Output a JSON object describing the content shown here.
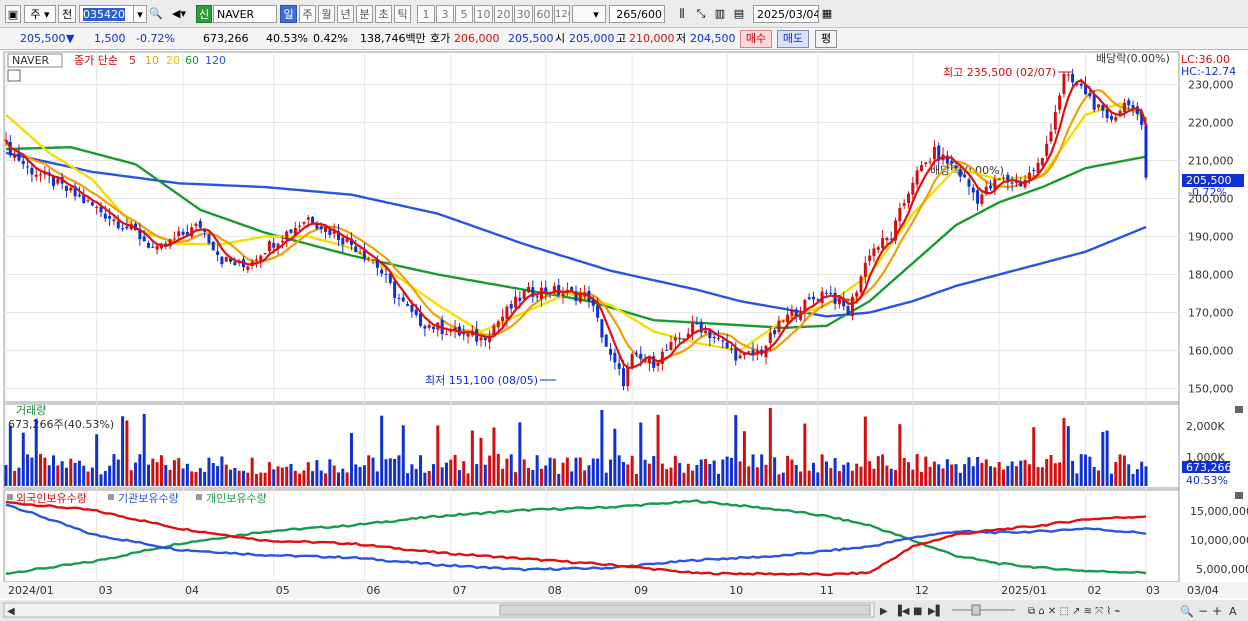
{
  "toolbar": {
    "type_select": "주",
    "prev_label": "전",
    "code": "035420",
    "stock_name": "NAVER",
    "market_badge": "신",
    "periods": [
      "일",
      "주",
      "월",
      "년",
      "분",
      "초",
      "틱"
    ],
    "active_period": "일",
    "numbers": [
      "1",
      "3",
      "5",
      "10",
      "20",
      "30",
      "60",
      "120"
    ],
    "count_value": "265",
    "count_total": "/600",
    "date": "2025/03/04"
  },
  "quote": {
    "price": "205,500",
    "change_arrow": "▼",
    "change": "1,500",
    "change_rate": "-0.72%",
    "volume": "673,266",
    "volume_rate": "40.53%",
    "turnover_rate": "0.42%",
    "amount": "138,746백만",
    "bid_label": "호가",
    "bid1": "206,000",
    "bid2": "205,500",
    "open_label": "시",
    "open": "205,000",
    "high_label": "고",
    "high": "210,000",
    "low_label": "저",
    "low": "204,500",
    "buy_button": "매수",
    "sell_button": "매도",
    "eval_button": "평"
  },
  "price_panel": {
    "name_box": "NAVER",
    "legend_prefix": "종가 단순",
    "ma": [
      {
        "period": "5",
        "color": "#dd1111"
      },
      {
        "period": "10",
        "color": "#f0a000"
      },
      {
        "period": "20",
        "color": "#f0e000"
      },
      {
        "period": "60",
        "color": "#1a9a30"
      },
      {
        "period": "120",
        "color": "#2a55e0"
      }
    ],
    "dividend_label": "배당락(0.00%)",
    "dividend_label_mid": "배당락(0.00%)",
    "lc_label": "LC:36.00",
    "hc_label": "HC:-12.74",
    "max_label": "최고 235,500 (02/07)",
    "min_label": "최저 151,100 (08/05)",
    "current_price_tag": "205,500",
    "current_change_tag": "-0.72%",
    "y_ticks": [
      "230,000",
      "220,000",
      "210,000",
      "200,000",
      "190,000",
      "180,000",
      "170,000",
      "160,000",
      "150,000"
    ]
  },
  "volume_panel": {
    "title": "거래량",
    "value_label": "673,266주(40.53%)",
    "y_ticks": [
      "2,000K",
      "1,000K"
    ],
    "current_tag": "673,266",
    "current_pct": "40.53%"
  },
  "holding_panel": {
    "legend": [
      {
        "name": "외국인보유수량",
        "color": "#dd1111"
      },
      {
        "name": "기관보유수량",
        "color": "#2a55e0"
      },
      {
        "name": "개인보유수량",
        "color": "#1a9a50"
      }
    ],
    "y_ticks": [
      "15,000,000",
      "10,000,000",
      "5,000,000"
    ]
  },
  "x_axis": {
    "ticks": [
      "2024/01",
      "03",
      "04",
      "05",
      "06",
      "07",
      "08",
      "09",
      "10",
      "11",
      "12",
      "2025/01",
      "02",
      "03"
    ],
    "right_label": "03/04"
  },
  "chart_data": {
    "type": "line",
    "title": "NAVER 035420",
    "y_range": [
      147000,
      238000
    ],
    "max": {
      "value": 235500,
      "date": "02/07"
    },
    "min": {
      "value": 151100,
      "date": "08/05"
    },
    "close": {
      "x": [
        0,
        5,
        10,
        20,
        30,
        35,
        40,
        45,
        50,
        55,
        60,
        70,
        80,
        85,
        90,
        95,
        100,
        110,
        120,
        125,
        130,
        135,
        140,
        143,
        145,
        150,
        160,
        170,
        175,
        180,
        185,
        190,
        195,
        200,
        205,
        210,
        215,
        220,
        225,
        230,
        235,
        240,
        245,
        250,
        255,
        260,
        263,
        264
      ],
      "values": [
        214000,
        208000,
        205000,
        198000,
        191000,
        186000,
        190000,
        193000,
        184000,
        182000,
        187000,
        195000,
        188000,
        184000,
        175000,
        168000,
        166000,
        163000,
        175000,
        176000,
        175000,
        174000,
        158000,
        152000,
        158000,
        157000,
        167000,
        158000,
        160000,
        168000,
        172000,
        176000,
        170000,
        186000,
        190000,
        205000,
        212000,
        208000,
        200000,
        205000,
        204000,
        210000,
        232000,
        228000,
        220000,
        226000,
        218000,
        205500
      ]
    },
    "ma120": {
      "x": [
        0,
        20,
        40,
        60,
        80,
        100,
        120,
        140,
        160,
        170,
        180,
        190,
        200,
        210,
        220,
        230,
        240,
        250,
        264
      ],
      "values": [
        212000,
        207000,
        204000,
        203000,
        201000,
        196000,
        188000,
        181000,
        176000,
        173000,
        171000,
        169000,
        170000,
        173000,
        177000,
        180000,
        183000,
        186000,
        192500
      ]
    },
    "ma60": {
      "x": [
        0,
        15,
        30,
        45,
        60,
        80,
        100,
        120,
        135,
        150,
        165,
        180,
        190,
        200,
        210,
        220,
        230,
        240,
        250,
        264
      ],
      "values": [
        213000,
        213500,
        209000,
        197000,
        191000,
        185000,
        180000,
        176000,
        173000,
        168000,
        167000,
        166000,
        166500,
        173000,
        183000,
        193000,
        199000,
        203000,
        208000,
        211000
      ]
    },
    "ma20": {
      "x": [
        0,
        10,
        20,
        30,
        40,
        50,
        60,
        70,
        80,
        90,
        100,
        110,
        120,
        130,
        140,
        150,
        160,
        170,
        180,
        190,
        200,
        210,
        220,
        230,
        240,
        250,
        258,
        264
      ],
      "values": [
        222000,
        212000,
        205000,
        192000,
        188000,
        188000,
        190000,
        190000,
        187000,
        180000,
        172000,
        165000,
        170000,
        175000,
        172000,
        165000,
        162000,
        160000,
        168000,
        172000,
        180000,
        196000,
        208000,
        205000,
        206000,
        222000,
        225000,
        221000
      ]
    },
    "volume_bars_scale": "K",
    "holdings": {
      "x": [
        0,
        20,
        40,
        60,
        80,
        100,
        120,
        140,
        160,
        180,
        190,
        200,
        210,
        220,
        230,
        240,
        250,
        264
      ],
      "foreign": [
        16300000,
        15000000,
        12000000,
        10000000,
        9500000,
        8000000,
        7000000,
        6000000,
        4600000,
        4500000,
        4400000,
        4700000,
        9000000,
        11000000,
        11800000,
        12500000,
        13500000,
        14000000
      ],
      "institution": [
        16000000,
        11000000,
        8500000,
        7600000,
        7200000,
        6000000,
        5200000,
        5500000,
        6800000,
        7500000,
        8300000,
        9000000,
        10500000,
        11500000,
        11300000,
        11500000,
        12000000,
        11200000
      ],
      "individual": [
        4600000,
        6500000,
        9500000,
        11500000,
        12500000,
        14000000,
        15000000,
        15500000,
        16500000,
        15000000,
        14000000,
        12500000,
        10000000,
        7500000,
        6200000,
        5500000,
        5000000,
        4700000
      ]
    }
  }
}
